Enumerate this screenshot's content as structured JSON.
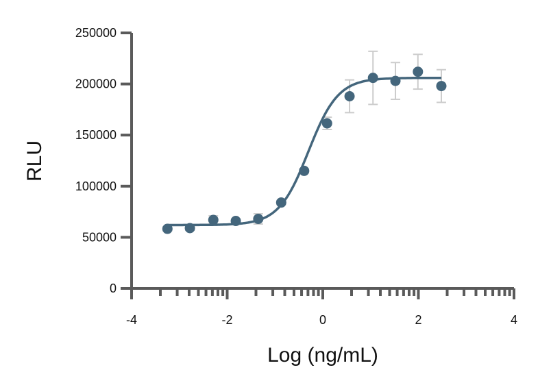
{
  "chart_data": {
    "type": "scatter",
    "title": "",
    "xlabel": "Log (ng/mL)",
    "ylabel": "RLU",
    "xlim": [
      -4,
      4
    ],
    "ylim": [
      0,
      250000
    ],
    "x_ticks": [
      "-4",
      "-2",
      "0",
      "2",
      "4"
    ],
    "x_tick_values": [
      -4,
      -2,
      0,
      2,
      4
    ],
    "y_ticks": [
      "0",
      "50000",
      "100000",
      "150000",
      "200000",
      "250000"
    ],
    "y_tick_values": [
      0,
      50000,
      100000,
      150000,
      200000,
      250000
    ],
    "grid": false,
    "colors": {
      "series": "#44667c",
      "error_bars": "#cccccc",
      "axis": "#5a5a5a"
    },
    "series": [
      {
        "name": "RLU",
        "x": [
          -3.25,
          -2.78,
          -2.29,
          -1.82,
          -1.35,
          -0.87,
          -0.39,
          0.09,
          0.56,
          1.05,
          1.52,
          1.99,
          2.48
        ],
        "y": [
          58300,
          59000,
          67000,
          66000,
          68000,
          84000,
          115000,
          161500,
          188000,
          206000,
          203000,
          212000,
          198000
        ],
        "error": [
          2000,
          2000,
          4000,
          2000,
          5000,
          2000,
          2000,
          6000,
          16000,
          26000,
          18000,
          17000,
          16000
        ]
      }
    ],
    "fit": {
      "model": "4PL",
      "bottom": 62000,
      "top": 206000,
      "logEC50": -0.3,
      "hill": 1.4,
      "x_range": [
        -3.25,
        2.48
      ]
    }
  }
}
